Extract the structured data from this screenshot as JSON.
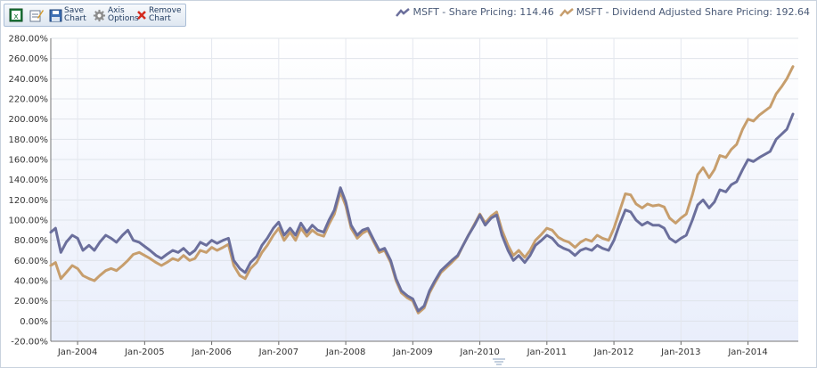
{
  "toolbar": {
    "save_label_1": "Save",
    "save_label_2": "Chart",
    "axis_label_1": "Axis",
    "axis_label_2": "Options",
    "remove_label_1": "Remove",
    "remove_label_2": "Chart",
    "icons": [
      "excel-export-icon",
      "edit-chart-icon",
      "floppy-disk-icon",
      "gear-icon",
      "red-x-icon"
    ]
  },
  "legend": {
    "items": [
      {
        "label": "MSFT - Share Pricing: 114.46",
        "color": "#6b6f9c"
      },
      {
        "label": "MSFT - Dividend Adjusted Share Pricing: 192.64",
        "color": "#c79e6d"
      }
    ]
  },
  "chart_data": {
    "type": "line",
    "ylim": [
      -20,
      280
    ],
    "yticks": [
      -20,
      0,
      20,
      40,
      60,
      80,
      100,
      120,
      140,
      160,
      180,
      200,
      220,
      240,
      260,
      280
    ],
    "ytick_labels": [
      "-20.00%",
      "0.00%",
      "20.00%",
      "40.00%",
      "60.00%",
      "80.00%",
      "100.00%",
      "120.00%",
      "140.00%",
      "160.00%",
      "180.00%",
      "200.00%",
      "220.00%",
      "240.00%",
      "260.00%",
      "280.00%"
    ],
    "xlim": [
      2003.6,
      2014.75
    ],
    "xticks": [
      2004,
      2005,
      2006,
      2007,
      2008,
      2009,
      2010,
      2011,
      2012,
      2013,
      2014
    ],
    "xtick_labels": [
      "Jan-2004",
      "Jan-2005",
      "Jan-2006",
      "Jan-2007",
      "Jan-2008",
      "Jan-2009",
      "Jan-2010",
      "Jan-2011",
      "Jan-2012",
      "Jan-2013",
      "Jan-2014"
    ],
    "grid": true,
    "legend_position": "top-right",
    "series": [
      {
        "name": "MSFT - Share Pricing: 114.46",
        "color": "#6b6f9c",
        "points": [
          [
            2003.6,
            88
          ],
          [
            2003.67,
            92
          ],
          [
            2003.75,
            68
          ],
          [
            2003.83,
            78
          ],
          [
            2003.92,
            85
          ],
          [
            2004.0,
            82
          ],
          [
            2004.08,
            70
          ],
          [
            2004.17,
            75
          ],
          [
            2004.25,
            70
          ],
          [
            2004.33,
            78
          ],
          [
            2004.42,
            85
          ],
          [
            2004.5,
            82
          ],
          [
            2004.58,
            78
          ],
          [
            2004.67,
            85
          ],
          [
            2004.75,
            90
          ],
          [
            2004.83,
            80
          ],
          [
            2004.92,
            78
          ],
          [
            2005.0,
            74
          ],
          [
            2005.08,
            70
          ],
          [
            2005.17,
            65
          ],
          [
            2005.25,
            62
          ],
          [
            2005.33,
            66
          ],
          [
            2005.42,
            70
          ],
          [
            2005.5,
            68
          ],
          [
            2005.58,
            72
          ],
          [
            2005.67,
            66
          ],
          [
            2005.75,
            70
          ],
          [
            2005.83,
            78
          ],
          [
            2005.92,
            75
          ],
          [
            2006.0,
            80
          ],
          [
            2006.08,
            77
          ],
          [
            2006.17,
            80
          ],
          [
            2006.25,
            82
          ],
          [
            2006.33,
            60
          ],
          [
            2006.42,
            52
          ],
          [
            2006.5,
            48
          ],
          [
            2006.58,
            58
          ],
          [
            2006.67,
            64
          ],
          [
            2006.75,
            75
          ],
          [
            2006.83,
            82
          ],
          [
            2006.92,
            92
          ],
          [
            2007.0,
            98
          ],
          [
            2007.08,
            85
          ],
          [
            2007.17,
            92
          ],
          [
            2007.25,
            85
          ],
          [
            2007.33,
            97
          ],
          [
            2007.42,
            88
          ],
          [
            2007.5,
            95
          ],
          [
            2007.58,
            90
          ],
          [
            2007.67,
            88
          ],
          [
            2007.75,
            100
          ],
          [
            2007.83,
            110
          ],
          [
            2007.92,
            132
          ],
          [
            2008.0,
            118
          ],
          [
            2008.08,
            95
          ],
          [
            2008.17,
            85
          ],
          [
            2008.25,
            90
          ],
          [
            2008.33,
            92
          ],
          [
            2008.42,
            80
          ],
          [
            2008.5,
            70
          ],
          [
            2008.58,
            72
          ],
          [
            2008.67,
            60
          ],
          [
            2008.75,
            42
          ],
          [
            2008.83,
            30
          ],
          [
            2008.92,
            25
          ],
          [
            2009.0,
            22
          ],
          [
            2009.08,
            10
          ],
          [
            2009.17,
            15
          ],
          [
            2009.25,
            30
          ],
          [
            2009.33,
            40
          ],
          [
            2009.42,
            50
          ],
          [
            2009.5,
            55
          ],
          [
            2009.58,
            60
          ],
          [
            2009.67,
            65
          ],
          [
            2009.75,
            75
          ],
          [
            2009.83,
            85
          ],
          [
            2009.92,
            95
          ],
          [
            2010.0,
            105
          ],
          [
            2010.08,
            95
          ],
          [
            2010.17,
            102
          ],
          [
            2010.25,
            105
          ],
          [
            2010.33,
            85
          ],
          [
            2010.42,
            70
          ],
          [
            2010.5,
            60
          ],
          [
            2010.58,
            65
          ],
          [
            2010.67,
            58
          ],
          [
            2010.75,
            65
          ],
          [
            2010.83,
            75
          ],
          [
            2010.92,
            80
          ],
          [
            2011.0,
            85
          ],
          [
            2011.08,
            82
          ],
          [
            2011.17,
            75
          ],
          [
            2011.25,
            72
          ],
          [
            2011.33,
            70
          ],
          [
            2011.42,
            65
          ],
          [
            2011.5,
            70
          ],
          [
            2011.58,
            72
          ],
          [
            2011.67,
            70
          ],
          [
            2011.75,
            75
          ],
          [
            2011.83,
            72
          ],
          [
            2011.92,
            70
          ],
          [
            2012.0,
            80
          ],
          [
            2012.08,
            95
          ],
          [
            2012.17,
            110
          ],
          [
            2012.25,
            108
          ],
          [
            2012.33,
            100
          ],
          [
            2012.42,
            95
          ],
          [
            2012.5,
            98
          ],
          [
            2012.58,
            95
          ],
          [
            2012.67,
            95
          ],
          [
            2012.75,
            92
          ],
          [
            2012.83,
            82
          ],
          [
            2012.92,
            78
          ],
          [
            2013.0,
            82
          ],
          [
            2013.08,
            85
          ],
          [
            2013.17,
            100
          ],
          [
            2013.25,
            115
          ],
          [
            2013.33,
            120
          ],
          [
            2013.42,
            112
          ],
          [
            2013.5,
            118
          ],
          [
            2013.58,
            130
          ],
          [
            2013.67,
            128
          ],
          [
            2013.75,
            135
          ],
          [
            2013.83,
            138
          ],
          [
            2013.92,
            150
          ],
          [
            2014.0,
            160
          ],
          [
            2014.08,
            158
          ],
          [
            2014.17,
            162
          ],
          [
            2014.25,
            165
          ],
          [
            2014.33,
            168
          ],
          [
            2014.42,
            180
          ],
          [
            2014.5,
            185
          ],
          [
            2014.58,
            190
          ],
          [
            2014.67,
            205
          ]
        ]
      },
      {
        "name": "MSFT - Dividend Adjusted Share Pricing: 192.64",
        "color": "#c79e6d",
        "points": [
          [
            2003.6,
            55
          ],
          [
            2003.67,
            58
          ],
          [
            2003.75,
            42
          ],
          [
            2003.83,
            48
          ],
          [
            2003.92,
            55
          ],
          [
            2004.0,
            52
          ],
          [
            2004.08,
            45
          ],
          [
            2004.17,
            42
          ],
          [
            2004.25,
            40
          ],
          [
            2004.33,
            45
          ],
          [
            2004.42,
            50
          ],
          [
            2004.5,
            52
          ],
          [
            2004.58,
            50
          ],
          [
            2004.67,
            55
          ],
          [
            2004.75,
            60
          ],
          [
            2004.83,
            66
          ],
          [
            2004.92,
            68
          ],
          [
            2005.0,
            65
          ],
          [
            2005.08,
            62
          ],
          [
            2005.17,
            58
          ],
          [
            2005.25,
            55
          ],
          [
            2005.33,
            58
          ],
          [
            2005.42,
            62
          ],
          [
            2005.5,
            60
          ],
          [
            2005.58,
            65
          ],
          [
            2005.67,
            60
          ],
          [
            2005.75,
            62
          ],
          [
            2005.83,
            70
          ],
          [
            2005.92,
            68
          ],
          [
            2006.0,
            73
          ],
          [
            2006.08,
            70
          ],
          [
            2006.17,
            73
          ],
          [
            2006.25,
            76
          ],
          [
            2006.33,
            55
          ],
          [
            2006.42,
            45
          ],
          [
            2006.5,
            42
          ],
          [
            2006.58,
            52
          ],
          [
            2006.67,
            58
          ],
          [
            2006.75,
            68
          ],
          [
            2006.83,
            75
          ],
          [
            2006.92,
            85
          ],
          [
            2007.0,
            92
          ],
          [
            2007.08,
            80
          ],
          [
            2007.17,
            88
          ],
          [
            2007.25,
            80
          ],
          [
            2007.33,
            92
          ],
          [
            2007.42,
            84
          ],
          [
            2007.5,
            90
          ],
          [
            2007.58,
            86
          ],
          [
            2007.67,
            84
          ],
          [
            2007.75,
            96
          ],
          [
            2007.83,
            106
          ],
          [
            2007.92,
            128
          ],
          [
            2008.0,
            114
          ],
          [
            2008.08,
            92
          ],
          [
            2008.17,
            82
          ],
          [
            2008.25,
            87
          ],
          [
            2008.33,
            90
          ],
          [
            2008.42,
            78
          ],
          [
            2008.5,
            68
          ],
          [
            2008.58,
            70
          ],
          [
            2008.67,
            58
          ],
          [
            2008.75,
            40
          ],
          [
            2008.83,
            28
          ],
          [
            2008.92,
            23
          ],
          [
            2009.0,
            20
          ],
          [
            2009.08,
            8
          ],
          [
            2009.17,
            13
          ],
          [
            2009.25,
            28
          ],
          [
            2009.33,
            38
          ],
          [
            2009.42,
            48
          ],
          [
            2009.5,
            53
          ],
          [
            2009.58,
            58
          ],
          [
            2009.67,
            64
          ],
          [
            2009.75,
            75
          ],
          [
            2009.83,
            85
          ],
          [
            2009.92,
            96
          ],
          [
            2010.0,
            106
          ],
          [
            2010.08,
            97
          ],
          [
            2010.17,
            104
          ],
          [
            2010.25,
            108
          ],
          [
            2010.33,
            90
          ],
          [
            2010.42,
            75
          ],
          [
            2010.5,
            65
          ],
          [
            2010.58,
            70
          ],
          [
            2010.67,
            63
          ],
          [
            2010.75,
            70
          ],
          [
            2010.83,
            80
          ],
          [
            2010.92,
            86
          ],
          [
            2011.0,
            92
          ],
          [
            2011.08,
            90
          ],
          [
            2011.17,
            83
          ],
          [
            2011.25,
            80
          ],
          [
            2011.33,
            78
          ],
          [
            2011.42,
            73
          ],
          [
            2011.5,
            78
          ],
          [
            2011.58,
            81
          ],
          [
            2011.67,
            79
          ],
          [
            2011.75,
            85
          ],
          [
            2011.83,
            82
          ],
          [
            2011.92,
            80
          ],
          [
            2012.0,
            92
          ],
          [
            2012.08,
            108
          ],
          [
            2012.17,
            126
          ],
          [
            2012.25,
            125
          ],
          [
            2012.33,
            116
          ],
          [
            2012.42,
            112
          ],
          [
            2012.5,
            116
          ],
          [
            2012.58,
            114
          ],
          [
            2012.67,
            115
          ],
          [
            2012.75,
            113
          ],
          [
            2012.83,
            102
          ],
          [
            2012.92,
            97
          ],
          [
            2013.0,
            102
          ],
          [
            2013.08,
            106
          ],
          [
            2013.17,
            125
          ],
          [
            2013.25,
            145
          ],
          [
            2013.33,
            152
          ],
          [
            2013.42,
            142
          ],
          [
            2013.5,
            150
          ],
          [
            2013.58,
            164
          ],
          [
            2013.67,
            162
          ],
          [
            2013.75,
            170
          ],
          [
            2013.83,
            175
          ],
          [
            2013.92,
            190
          ],
          [
            2014.0,
            200
          ],
          [
            2014.08,
            198
          ],
          [
            2014.17,
            204
          ],
          [
            2014.25,
            208
          ],
          [
            2014.33,
            212
          ],
          [
            2014.42,
            225
          ],
          [
            2014.5,
            232
          ],
          [
            2014.58,
            240
          ],
          [
            2014.67,
            252
          ]
        ]
      }
    ]
  }
}
